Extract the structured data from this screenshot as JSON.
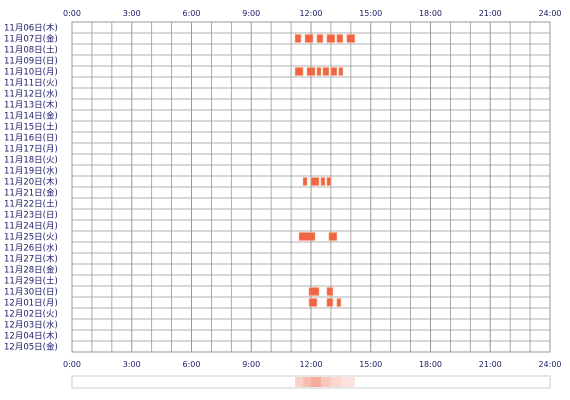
{
  "chart_data": {
    "type": "heatmap",
    "title": "",
    "xlabel": "",
    "ylabel": "",
    "x_ticks": [
      "0:00",
      "3:00",
      "6:00",
      "9:00",
      "12:00",
      "15:00",
      "18:00",
      "21:00",
      "24:00"
    ],
    "x_range_hours": [
      0,
      24
    ],
    "grid": true,
    "rows": [
      "11月06日(木)",
      "11月07日(金)",
      "11月08日(土)",
      "11月09日(日)",
      "11月10日(月)",
      "11月11日(火)",
      "11月12日(水)",
      "11月13日(木)",
      "11月14日(金)",
      "11月15日(土)",
      "11月16日(日)",
      "11月17日(月)",
      "11月18日(火)",
      "11月19日(水)",
      "11月20日(木)",
      "11月21日(金)",
      "11月22日(土)",
      "11月23日(日)",
      "11月24日(月)",
      "11月25日(火)",
      "11月26日(水)",
      "11月27日(木)",
      "11月28日(金)",
      "11月29日(土)",
      "11月30日(日)",
      "12月01日(月)",
      "12月02日(火)",
      "12月03日(水)",
      "12月04日(木)",
      "12月05日(金)"
    ],
    "activity": {
      "11月07日(金)": [
        [
          11.2,
          11.5
        ],
        [
          11.7,
          12.1
        ],
        [
          12.3,
          12.6
        ],
        [
          12.8,
          13.2
        ],
        [
          13.3,
          13.6
        ],
        [
          13.8,
          14.2
        ]
      ],
      "11月10日(月)": [
        [
          11.2,
          11.6
        ],
        [
          11.8,
          12.2
        ],
        [
          12.3,
          12.5
        ],
        [
          12.6,
          12.9
        ],
        [
          13.0,
          13.3
        ],
        [
          13.4,
          13.6
        ]
      ],
      "11月20日(木)": [
        [
          11.6,
          11.8
        ],
        [
          12.0,
          12.4
        ],
        [
          12.5,
          12.7
        ],
        [
          12.8,
          13.0
        ]
      ],
      "11月25日(火)": [
        [
          11.4,
          12.2
        ],
        [
          12.9,
          13.3
        ]
      ],
      "11月30日(日)": [
        [
          11.9,
          12.4
        ],
        [
          12.8,
          13.1
        ]
      ],
      "12月01日(月)": [
        [
          11.9,
          12.3
        ],
        [
          12.8,
          13.1
        ],
        [
          13.3,
          13.5
        ]
      ]
    },
    "density_bar": [
      {
        "from": 11.2,
        "to": 11.6,
        "level": 0.5
      },
      {
        "from": 11.6,
        "to": 12.0,
        "level": 0.7
      },
      {
        "from": 12.0,
        "to": 12.5,
        "level": 0.9
      },
      {
        "from": 12.5,
        "to": 13.0,
        "level": 0.6
      },
      {
        "from": 13.0,
        "to": 13.5,
        "level": 0.45
      },
      {
        "from": 13.5,
        "to": 14.2,
        "level": 0.3
      }
    ],
    "colors": {
      "grid": "#999999",
      "activity": "#ee6644",
      "activity_stroke": "#ffaa88",
      "text": "#1a1a66",
      "density_base": "#ffddcc"
    }
  }
}
